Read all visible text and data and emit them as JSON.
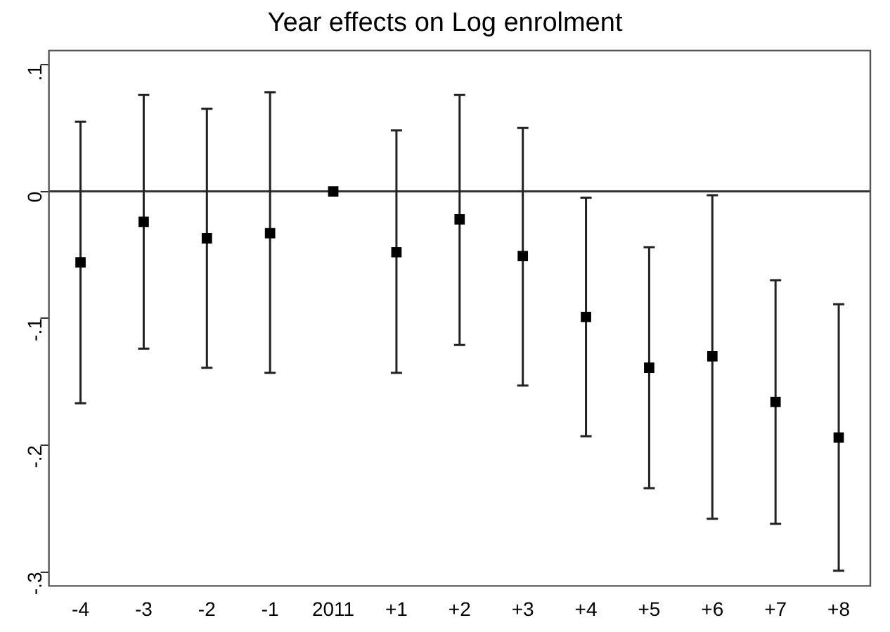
{
  "chart_data": {
    "type": "scatter",
    "title": "Year effects on Log enrolment",
    "categories": [
      "-4",
      "-3",
      "-2",
      "-1",
      "2011",
      "+1",
      "+2",
      "+3",
      "+4",
      "+5",
      "+6",
      "+7",
      "+8"
    ],
    "series": [
      {
        "color": "#000000",
        "values": [
          -0.056,
          -0.024,
          -0.037,
          -0.033,
          0,
          -0.048,
          -0.022,
          -0.051,
          -0.099,
          -0.139,
          -0.13,
          -0.166,
          -0.194
        ],
        "errors": [
          [
            -0.167,
            0.055
          ],
          [
            -0.124,
            0.076
          ],
          [
            -0.139,
            0.065
          ],
          [
            -0.143,
            0.078
          ],
          null,
          [
            -0.143,
            0.048
          ],
          [
            -0.121,
            0.076
          ],
          [
            -0.153,
            0.05
          ],
          [
            -0.193,
            -0.005
          ],
          [
            -0.234,
            -0.044
          ],
          [
            -0.258,
            -0.003
          ],
          [
            -0.262,
            -0.07
          ],
          [
            -0.299,
            -0.089
          ]
        ]
      }
    ],
    "ylim": [
      -0.311,
      0.111
    ],
    "yticks": [
      {
        "value": -0.3,
        "label": "-.3"
      },
      {
        "value": -0.2,
        "label": "-.2"
      },
      {
        "value": -0.1,
        "label": "-.1"
      },
      {
        "value": 0,
        "label": "0"
      },
      {
        "value": 0.1,
        "label": ".1"
      }
    ],
    "ref_lines": [
      {
        "axis": "y",
        "value": 0,
        "color": "#333333"
      }
    ],
    "marker": "square",
    "grid": false,
    "legend": false
  }
}
